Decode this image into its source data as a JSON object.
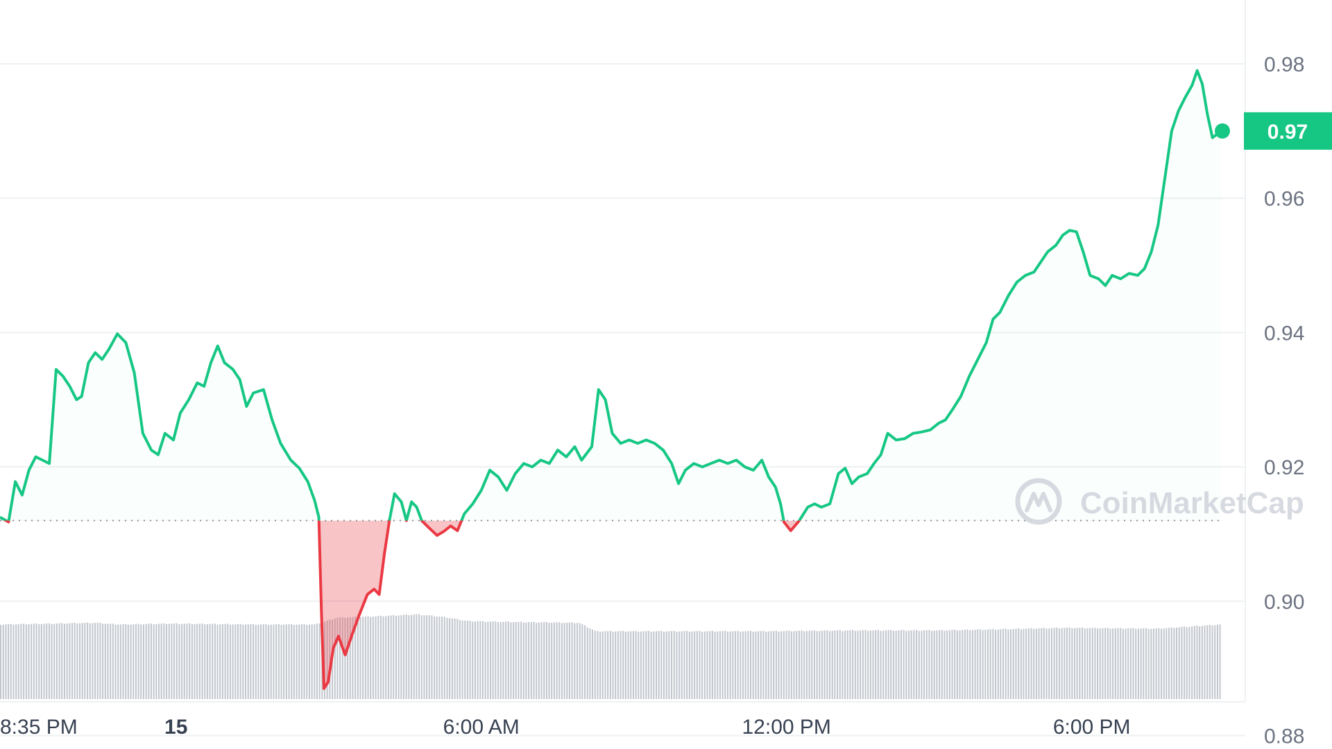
{
  "chart_data": {
    "type": "line",
    "y_axis": {
      "ylim": [
        0.878,
        0.9895
      ],
      "ticks": [
        "0.98",
        "0.96",
        "0.94",
        "0.92",
        "0.90",
        "0.88"
      ],
      "tick_values": [
        0.98,
        0.96,
        0.94,
        0.92,
        0.9,
        0.88
      ],
      "position": "right"
    },
    "x_axis": {
      "domain": [
        0,
        1436
      ],
      "ticks": [
        {
          "label": "8:35 PM",
          "x": 0,
          "bold": false
        },
        {
          "label": "15",
          "x": 207,
          "bold": true
        },
        {
          "label": "6:00 AM",
          "x": 566,
          "bold": false
        },
        {
          "label": "12:00 PM",
          "x": 925,
          "bold": false
        },
        {
          "label": "6:00 PM",
          "x": 1284,
          "bold": false
        }
      ]
    },
    "baseline": 0.912,
    "current_price": "0.97",
    "current_value": 0.97,
    "colors": {
      "up": "#16c784",
      "down": "#ea3943",
      "volume": "#c3c7ce",
      "grid": "#eef0f3",
      "badge": "#16c784"
    },
    "series": [
      {
        "points": [
          [
            0,
            0.9125
          ],
          [
            10,
            0.9118
          ],
          [
            18,
            0.9178
          ],
          [
            26,
            0.9158
          ],
          [
            34,
            0.9195
          ],
          [
            42,
            0.9215
          ],
          [
            50,
            0.921
          ],
          [
            58,
            0.9205
          ],
          [
            66,
            0.9345
          ],
          [
            74,
            0.9335
          ],
          [
            82,
            0.932
          ],
          [
            90,
            0.93
          ],
          [
            96,
            0.9305
          ],
          [
            104,
            0.9355
          ],
          [
            112,
            0.937
          ],
          [
            120,
            0.936
          ],
          [
            128,
            0.9375
          ],
          [
            138,
            0.9398
          ],
          [
            148,
            0.9385
          ],
          [
            158,
            0.934
          ],
          [
            168,
            0.925
          ],
          [
            178,
            0.9225
          ],
          [
            186,
            0.9218
          ],
          [
            194,
            0.925
          ],
          [
            204,
            0.924
          ],
          [
            212,
            0.928
          ],
          [
            222,
            0.93
          ],
          [
            232,
            0.9325
          ],
          [
            240,
            0.932
          ],
          [
            248,
            0.9355
          ],
          [
            256,
            0.938
          ],
          [
            264,
            0.9355
          ],
          [
            274,
            0.9345
          ],
          [
            282,
            0.933
          ],
          [
            290,
            0.929
          ],
          [
            298,
            0.931
          ],
          [
            310,
            0.9315
          ],
          [
            320,
            0.927
          ],
          [
            330,
            0.9235
          ],
          [
            342,
            0.921
          ],
          [
            352,
            0.9198
          ],
          [
            362,
            0.9178
          ],
          [
            370,
            0.915
          ],
          [
            375,
            0.9125
          ],
          [
            378,
            0.8985
          ],
          [
            381,
            0.887
          ],
          [
            386,
            0.888
          ],
          [
            392,
            0.893
          ],
          [
            398,
            0.8948
          ],
          [
            406,
            0.892
          ],
          [
            414,
            0.895
          ],
          [
            422,
            0.8978
          ],
          [
            432,
            0.901
          ],
          [
            440,
            0.9018
          ],
          [
            446,
            0.901
          ],
          [
            452,
            0.907
          ],
          [
            458,
            0.912
          ],
          [
            464,
            0.916
          ],
          [
            472,
            0.9148
          ],
          [
            478,
            0.912
          ],
          [
            484,
            0.9148
          ],
          [
            490,
            0.914
          ],
          [
            496,
            0.912
          ],
          [
            504,
            0.911
          ],
          [
            514,
            0.9098
          ],
          [
            522,
            0.9104
          ],
          [
            530,
            0.9112
          ],
          [
            538,
            0.9105
          ],
          [
            546,
            0.913
          ],
          [
            556,
            0.9145
          ],
          [
            566,
            0.9165
          ],
          [
            576,
            0.9195
          ],
          [
            586,
            0.9185
          ],
          [
            596,
            0.9165
          ],
          [
            606,
            0.919
          ],
          [
            616,
            0.9205
          ],
          [
            626,
            0.92
          ],
          [
            636,
            0.921
          ],
          [
            646,
            0.9205
          ],
          [
            656,
            0.9225
          ],
          [
            666,
            0.9215
          ],
          [
            676,
            0.923
          ],
          [
            684,
            0.921
          ],
          [
            696,
            0.923
          ],
          [
            704,
            0.9315
          ],
          [
            712,
            0.93
          ],
          [
            720,
            0.925
          ],
          [
            730,
            0.9235
          ],
          [
            740,
            0.924
          ],
          [
            750,
            0.9235
          ],
          [
            760,
            0.924
          ],
          [
            770,
            0.9235
          ],
          [
            780,
            0.9225
          ],
          [
            790,
            0.9205
          ],
          [
            798,
            0.9175
          ],
          [
            806,
            0.9195
          ],
          [
            816,
            0.9205
          ],
          [
            826,
            0.92
          ],
          [
            836,
            0.9205
          ],
          [
            846,
            0.921
          ],
          [
            856,
            0.9205
          ],
          [
            866,
            0.921
          ],
          [
            876,
            0.92
          ],
          [
            886,
            0.9195
          ],
          [
            896,
            0.921
          ],
          [
            904,
            0.9185
          ],
          [
            912,
            0.917
          ],
          [
            918,
            0.9145
          ],
          [
            922,
            0.9118
          ],
          [
            930,
            0.9105
          ],
          [
            940,
            0.912
          ],
          [
            950,
            0.914
          ],
          [
            958,
            0.9145
          ],
          [
            966,
            0.914
          ],
          [
            976,
            0.9145
          ],
          [
            986,
            0.919
          ],
          [
            994,
            0.9198
          ],
          [
            1002,
            0.9175
          ],
          [
            1010,
            0.9185
          ],
          [
            1020,
            0.919
          ],
          [
            1028,
            0.9205
          ],
          [
            1036,
            0.9218
          ],
          [
            1044,
            0.925
          ],
          [
            1054,
            0.924
          ],
          [
            1064,
            0.9242
          ],
          [
            1074,
            0.925
          ],
          [
            1084,
            0.9252
          ],
          [
            1094,
            0.9255
          ],
          [
            1104,
            0.9265
          ],
          [
            1112,
            0.927
          ],
          [
            1120,
            0.9285
          ],
          [
            1130,
            0.9305
          ],
          [
            1140,
            0.9335
          ],
          [
            1150,
            0.936
          ],
          [
            1160,
            0.9385
          ],
          [
            1168,
            0.942
          ],
          [
            1176,
            0.943
          ],
          [
            1186,
            0.9455
          ],
          [
            1196,
            0.9475
          ],
          [
            1206,
            0.9485
          ],
          [
            1216,
            0.949
          ],
          [
            1224,
            0.9505
          ],
          [
            1232,
            0.952
          ],
          [
            1242,
            0.953
          ],
          [
            1250,
            0.9545
          ],
          [
            1258,
            0.9552
          ],
          [
            1266,
            0.955
          ],
          [
            1274,
            0.952
          ],
          [
            1282,
            0.9485
          ],
          [
            1292,
            0.948
          ],
          [
            1300,
            0.947
          ],
          [
            1308,
            0.9485
          ],
          [
            1318,
            0.948
          ],
          [
            1328,
            0.9488
          ],
          [
            1338,
            0.9485
          ],
          [
            1346,
            0.9495
          ],
          [
            1354,
            0.952
          ],
          [
            1362,
            0.956
          ],
          [
            1370,
            0.963
          ],
          [
            1378,
            0.97
          ],
          [
            1386,
            0.973
          ],
          [
            1394,
            0.975
          ],
          [
            1402,
            0.9768
          ],
          [
            1408,
            0.979
          ],
          [
            1414,
            0.977
          ],
          [
            1420,
            0.9725
          ],
          [
            1426,
            0.969
          ],
          [
            1436,
            0.97
          ]
        ]
      }
    ],
    "volume": {
      "ylim": [
        0,
        130
      ],
      "points": [
        [
          0,
          88
        ],
        [
          60,
          89
        ],
        [
          110,
          90
        ],
        [
          140,
          88
        ],
        [
          200,
          89
        ],
        [
          300,
          88
        ],
        [
          370,
          88
        ],
        [
          395,
          96
        ],
        [
          450,
          98
        ],
        [
          490,
          100
        ],
        [
          520,
          97
        ],
        [
          550,
          92
        ],
        [
          600,
          91
        ],
        [
          680,
          90
        ],
        [
          700,
          80
        ],
        [
          800,
          80
        ],
        [
          900,
          80
        ],
        [
          1000,
          81
        ],
        [
          1100,
          81
        ],
        [
          1160,
          82
        ],
        [
          1250,
          84
        ],
        [
          1360,
          83
        ],
        [
          1436,
          88
        ]
      ]
    },
    "watermark": "CoinMarketCap"
  }
}
